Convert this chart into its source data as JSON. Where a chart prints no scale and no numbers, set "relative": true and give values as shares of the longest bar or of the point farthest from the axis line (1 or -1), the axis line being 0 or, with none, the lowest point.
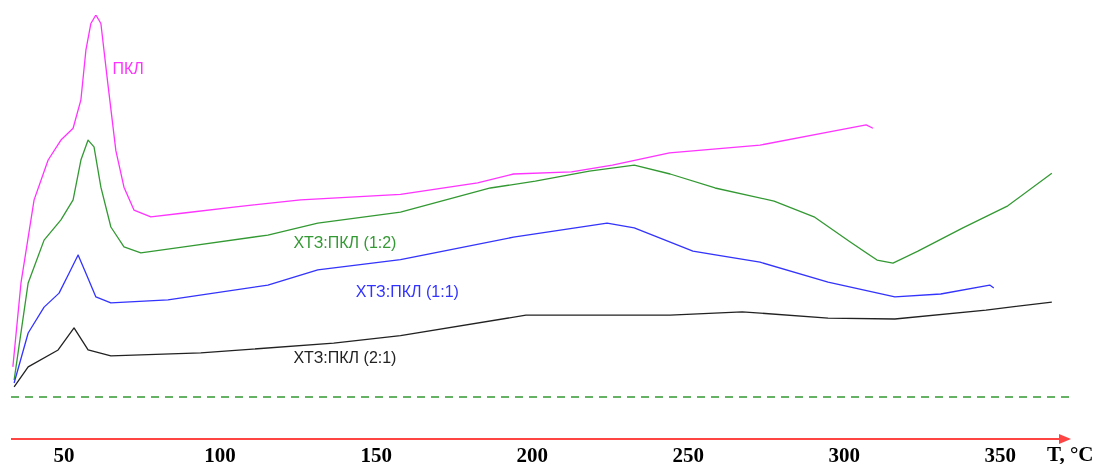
{
  "chart_data": {
    "type": "line",
    "relative": true,
    "xlabel": "T, °C",
    "xlim": [
      33,
      372
    ],
    "xticks": [
      50,
      100,
      150,
      200,
      250,
      300,
      350
    ],
    "marker": "none",
    "line_style": "solid",
    "ref_lines": [
      {
        "axis": "y",
        "value": 0.099,
        "color": "#339933",
        "line_style": "dashed"
      }
    ],
    "series": [
      {
        "name": "ПКЛ",
        "color": "#ff33ff",
        "x": [
          33.6,
          36.2,
          40.4,
          44.9,
          49,
          52.9,
          55.4,
          57,
          58.6,
          60.2,
          61.8,
          64,
          66.6,
          69.2,
          72.4,
          77.8,
          88.4,
          104.4,
          125.8,
          157.8,
          182.5,
          194,
          212.6,
          225.7,
          244,
          273,
          294.8,
          307,
          309.2
        ],
        "values": [
          0.17,
          0.368,
          0.564,
          0.658,
          0.705,
          0.733,
          0.8,
          0.917,
          0.98,
          1,
          0.98,
          0.84,
          0.68,
          0.594,
          0.54,
          0.524,
          0.533,
          0.547,
          0.564,
          0.577,
          0.604,
          0.625,
          0.63,
          0.646,
          0.675,
          0.693,
          0.724,
          0.741,
          0.733
        ]
      },
      {
        "name": "ХТЗ:ПКЛ (1:2)",
        "color": "#339933",
        "x": [
          34,
          38.5,
          43.6,
          49,
          52.9,
          55.4,
          57.7,
          59.6,
          61.8,
          65,
          69.2,
          74.6,
          88.4,
          115.3,
          131.3,
          157.8,
          186.6,
          201,
          218.3,
          232.7,
          244.2,
          258.6,
          277.5,
          290.3,
          301.8,
          310.5,
          315.6,
          323.6,
          338,
          352.4,
          366.5
        ],
        "values": [
          0.139,
          0.368,
          0.469,
          0.517,
          0.564,
          0.658,
          0.705,
          0.689,
          0.594,
          0.5,
          0.453,
          0.439,
          0.453,
          0.481,
          0.509,
          0.535,
          0.592,
          0.608,
          0.632,
          0.646,
          0.625,
          0.592,
          0.561,
          0.524,
          0.465,
          0.422,
          0.415,
          0.443,
          0.498,
          0.55,
          0.627
        ]
      },
      {
        "name": "ХТЗ:ПКЛ (1:1)",
        "color": "#3333ff",
        "x": [
          34,
          38.5,
          43.6,
          48.4,
          51.6,
          54.5,
          57,
          60.2,
          65,
          83.3,
          115.3,
          131.3,
          157.8,
          194,
          224,
          232.7,
          251.5,
          273,
          294.8,
          316.2,
          330.9,
          346.6,
          347.9
        ],
        "values": [
          0.132,
          0.25,
          0.311,
          0.344,
          0.391,
          0.434,
          0.391,
          0.335,
          0.321,
          0.328,
          0.363,
          0.399,
          0.423,
          0.476,
          0.509,
          0.498,
          0.443,
          0.417,
          0.37,
          0.335,
          0.342,
          0.363,
          0.356
        ]
      },
      {
        "name": "ХТЗ:ПКЛ (2:1)",
        "color": "#222222",
        "x": [
          34,
          38.5,
          48.1,
          53.2,
          57.7,
          65,
          93.8,
          136.4,
          157.8,
          198,
          244.2,
          267.3,
          294.8,
          316.2,
          345.4,
          366.5
        ],
        "values": [
          0.123,
          0.17,
          0.21,
          0.262,
          0.21,
          0.196,
          0.203,
          0.226,
          0.244,
          0.292,
          0.292,
          0.3,
          0.285,
          0.283,
          0.304,
          0.323
        ]
      }
    ]
  }
}
